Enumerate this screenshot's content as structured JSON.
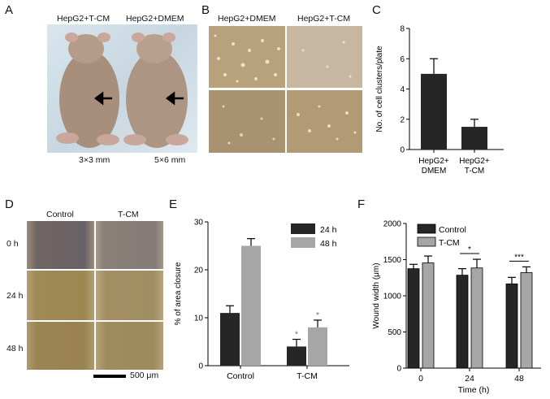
{
  "panel_letters": {
    "a": "A",
    "b": "B",
    "c": "C",
    "d": "D",
    "e": "E",
    "f": "F"
  },
  "panel_a": {
    "label_left": "HepG2+T-CM",
    "label_right": "HepG2+DMEM",
    "size_left": "3×3 mm",
    "size_right": "5×6 mm"
  },
  "panel_b": {
    "label_left": "HepG2+DMEM",
    "label_right": "HepG2+T-CM"
  },
  "panel_d": {
    "col_control": "Control",
    "col_tcm": "T-CM",
    "row_0": "0 h",
    "row_24": "24 h",
    "row_48": "48 h",
    "scale_bar": "500 μm"
  },
  "colors": {
    "dark_bar": "#262626",
    "gray_bar": "#a6a6a6",
    "photo_bg": "#b39a6b"
  },
  "chart_data": [
    {
      "id": "C",
      "type": "bar",
      "categories": [
        "HepG2+\nDMEM",
        "HepG2+\nT-CM"
      ],
      "category_lines": [
        [
          "HepG2+",
          "DMEM"
        ],
        [
          "HepG2+",
          "T-CM"
        ]
      ],
      "values": [
        5.0,
        1.5
      ],
      "errors": [
        1.0,
        0.5
      ],
      "ylabel": "No. of cell clusters/plate",
      "ylim": [
        0,
        8
      ],
      "yticks": [
        0,
        2,
        4,
        6,
        8
      ]
    },
    {
      "id": "E",
      "type": "bar",
      "categories": [
        "Control",
        "T-CM"
      ],
      "series": [
        {
          "name": "24 h",
          "values": [
            11,
            4
          ],
          "errors": [
            1.5,
            1.5
          ]
        },
        {
          "name": "48 h",
          "values": [
            25,
            8
          ],
          "errors": [
            1.5,
            1.5
          ]
        }
      ],
      "annotations": [
        {
          "category": "T-CM",
          "series": "24 h",
          "text": "*"
        },
        {
          "category": "T-CM",
          "series": "48 h",
          "text": "*"
        }
      ],
      "ylabel": "% of area closure",
      "ylim": [
        0,
        30
      ],
      "yticks": [
        0,
        10,
        20,
        30
      ],
      "legend": "top-right"
    },
    {
      "id": "F",
      "type": "bar",
      "categories": [
        "0",
        "24",
        "48"
      ],
      "series": [
        {
          "name": "Control",
          "values": [
            1375,
            1285,
            1165
          ],
          "errors": [
            60,
            90,
            90
          ]
        },
        {
          "name": "T-CM",
          "values": [
            1455,
            1385,
            1320
          ],
          "errors": [
            95,
            120,
            80
          ]
        }
      ],
      "significance": [
        {
          "category": "24",
          "text": "*"
        },
        {
          "category": "48",
          "text": "***"
        }
      ],
      "xlabel": "Time (h)",
      "ylabel": "Wound width (μm)",
      "ylim": [
        0,
        2000
      ],
      "yticks": [
        0,
        500,
        1000,
        1500,
        2000
      ],
      "legend": "top-left"
    }
  ]
}
